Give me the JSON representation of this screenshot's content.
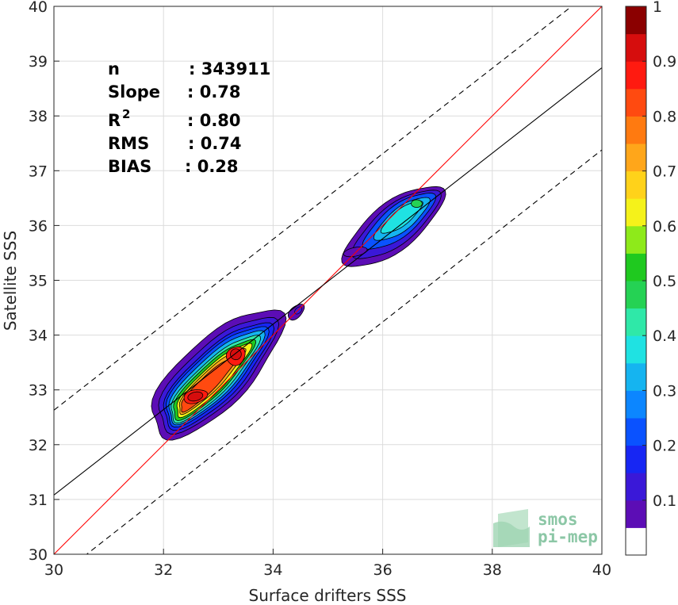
{
  "chart_data": {
    "type": "contour",
    "xlabel": "Surface drifters SSS",
    "ylabel": "Satellite SSS",
    "xlim": [
      30,
      40
    ],
    "ylim": [
      30,
      40
    ],
    "xticks": [
      30,
      32,
      34,
      36,
      38,
      40
    ],
    "yticks": [
      30,
      31,
      32,
      33,
      34,
      35,
      36,
      37,
      38,
      39,
      40
    ],
    "grid": true,
    "stats": [
      {
        "key": "n",
        "value": ": 343911"
      },
      {
        "key": "Slope",
        "value": ": 0.78"
      },
      {
        "key": "R",
        "sup": "2",
        "value": ": 0.80"
      },
      {
        "key": "RMS",
        "value": ": 0.74"
      },
      {
        "key": "BIAS",
        "value": ": 0.28"
      }
    ],
    "lines": [
      {
        "kind": "one-to-one",
        "color": "#ff0000",
        "x": [
          30,
          40
        ],
        "y": [
          30,
          40
        ]
      },
      {
        "kind": "regression",
        "color": "#000000",
        "x": [
          30,
          40
        ],
        "y": [
          31.08,
          38.88
        ]
      },
      {
        "kind": "upper-bound",
        "color": "#000000",
        "dash": true,
        "x": [
          30,
          40
        ],
        "y": [
          32.63,
          40.43
        ]
      },
      {
        "kind": "lower-bound",
        "color": "#000000",
        "dash": true,
        "x": [
          30,
          40
        ],
        "y": [
          29.53,
          37.38
        ]
      }
    ],
    "density_clusters": [
      {
        "center": [
          33.0,
          33.3
        ],
        "peak": 1.0
      },
      {
        "center": [
          36.3,
          36.05
        ],
        "peak": 0.45
      },
      {
        "center": [
          34.42,
          34.4
        ],
        "peak": 0.12
      }
    ],
    "colorbar": {
      "ticks": [
        "0.1",
        "0.2",
        "0.3",
        "0.4",
        "0.5",
        "0.6",
        "0.7",
        "0.8",
        "0.9",
        "1"
      ],
      "colors": [
        "#ffffff",
        "#5c0db5",
        "#3a18d8",
        "#1726f3",
        "#0a52ff",
        "#0c86ff",
        "#15b4f0",
        "#1fe2e2",
        "#2fe8a8",
        "#25d254",
        "#1fc91f",
        "#8eea1a",
        "#f5f21a",
        "#ffd21a",
        "#ffa61a",
        "#ff7a10",
        "#ff4a10",
        "#ff1a10",
        "#d60d0d",
        "#8b0000"
      ]
    },
    "logo": {
      "line1": "smos",
      "line2": "pi-mep"
    }
  }
}
